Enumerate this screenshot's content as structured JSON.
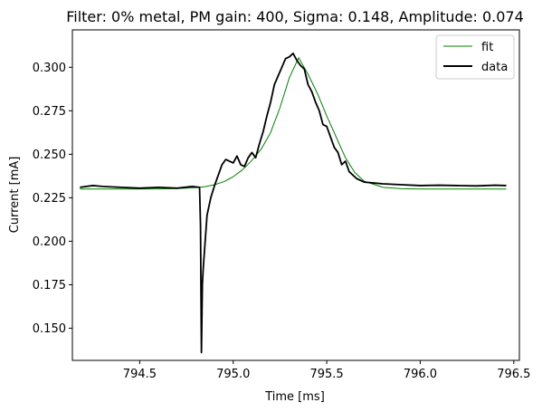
{
  "chart_data": {
    "type": "line",
    "title": "Filter: 0% metal, PM gain: 400, Sigma: 0.148, Amplitude: 0.074",
    "xlabel": "Time [ms]",
    "ylabel": "Current [mA]",
    "xlim": [
      794.14,
      796.53
    ],
    "ylim": [
      0.1315,
      0.3215
    ],
    "xticks": [
      794.5,
      795.0,
      795.5,
      796.0,
      796.5
    ],
    "xtick_labels": [
      "794.5",
      "795.0",
      "795.5",
      "796.0",
      "796.5"
    ],
    "yticks": [
      0.15,
      0.175,
      0.2,
      0.225,
      0.25,
      0.275,
      0.3
    ],
    "ytick_labels": [
      "0.150",
      "0.175",
      "0.200",
      "0.225",
      "0.250",
      "0.275",
      "0.300"
    ],
    "grid": false,
    "legend_position": "top-right",
    "series": [
      {
        "name": "fit",
        "color": "#008000",
        "style": "thin",
        "x": [
          794.18,
          794.4,
          794.6,
          794.7,
          794.8,
          794.85,
          794.9,
          794.95,
          795.0,
          795.05,
          795.1,
          795.15,
          795.2,
          795.25,
          795.3,
          795.35,
          795.4,
          795.45,
          795.5,
          795.55,
          795.6,
          795.65,
          795.7,
          795.8,
          795.9,
          796.0,
          796.2,
          796.46
        ],
        "y": [
          0.23,
          0.23,
          0.2301,
          0.2303,
          0.2308,
          0.2314,
          0.2325,
          0.2342,
          0.2371,
          0.2411,
          0.2465,
          0.253,
          0.2625,
          0.2768,
          0.294,
          0.3055,
          0.296,
          0.285,
          0.272,
          0.26,
          0.248,
          0.2395,
          0.2345,
          0.231,
          0.2302,
          0.23,
          0.23,
          0.23
        ]
      },
      {
        "name": "data",
        "color": "#000000",
        "style": "thick",
        "x": [
          794.18,
          794.25,
          794.3,
          794.4,
          794.5,
          794.6,
          794.7,
          794.78,
          794.82,
          794.825,
          794.83,
          794.835,
          794.84,
          794.86,
          794.88,
          794.9,
          794.92,
          794.94,
          794.96,
          794.98,
          795.0,
          795.02,
          795.04,
          795.06,
          795.08,
          795.1,
          795.12,
          795.14,
          795.16,
          795.18,
          795.2,
          795.22,
          795.24,
          795.26,
          795.28,
          795.3,
          795.32,
          795.34,
          795.36,
          795.38,
          795.4,
          795.42,
          795.44,
          795.46,
          795.48,
          795.5,
          795.52,
          795.54,
          795.56,
          795.58,
          795.6,
          795.62,
          795.64,
          795.66,
          795.68,
          795.7,
          795.75,
          795.8,
          795.9,
          796.0,
          796.1,
          796.2,
          796.3,
          796.4,
          796.46
        ],
        "y": [
          0.231,
          0.232,
          0.2315,
          0.231,
          0.2305,
          0.231,
          0.2305,
          0.2315,
          0.231,
          0.209,
          0.136,
          0.175,
          0.185,
          0.215,
          0.225,
          0.232,
          0.238,
          0.244,
          0.247,
          0.246,
          0.245,
          0.249,
          0.244,
          0.243,
          0.248,
          0.251,
          0.248,
          0.256,
          0.263,
          0.272,
          0.28,
          0.29,
          0.295,
          0.3,
          0.305,
          0.306,
          0.308,
          0.304,
          0.301,
          0.299,
          0.29,
          0.286,
          0.28,
          0.275,
          0.267,
          0.266,
          0.26,
          0.254,
          0.251,
          0.244,
          0.246,
          0.24,
          0.238,
          0.236,
          0.235,
          0.234,
          0.2335,
          0.233,
          0.2325,
          0.232,
          0.2322,
          0.232,
          0.2318,
          0.2322,
          0.232
        ]
      }
    ]
  }
}
